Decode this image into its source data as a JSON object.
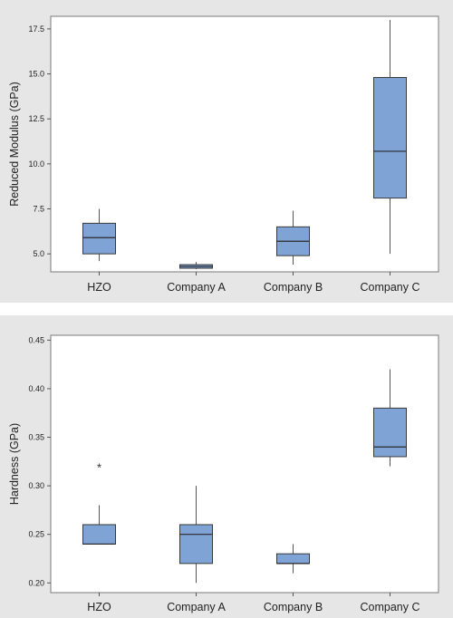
{
  "chart_data": [
    {
      "type": "box",
      "ylabel": "Reduced Modulus (GPa)",
      "categories": [
        "HZO",
        "Company A",
        "Company B",
        "Company C"
      ],
      "ylim": [
        4.0,
        18.2
      ],
      "yticks": [
        "5.0",
        "7.5",
        "10.0",
        "12.5",
        "15.0",
        "17.5"
      ],
      "ytick_values": [
        5.0,
        7.5,
        10.0,
        12.5,
        15.0,
        17.5
      ],
      "grid": false,
      "box_color": "#7ea3d4",
      "boxes": [
        {
          "category": "HZO",
          "whisker_low": 4.6,
          "q1": 5.0,
          "median": 5.9,
          "q3": 6.7,
          "whisker_high": 7.5,
          "outliers": []
        },
        {
          "category": "Company A",
          "whisker_low": 4.15,
          "q1": 4.2,
          "median": 4.3,
          "q3": 4.4,
          "whisker_high": 4.55,
          "outliers": []
        },
        {
          "category": "Company B",
          "whisker_low": 4.4,
          "q1": 4.9,
          "median": 5.7,
          "q3": 6.5,
          "whisker_high": 7.4,
          "outliers": []
        },
        {
          "category": "Company C",
          "whisker_low": 5.0,
          "q1": 8.1,
          "median": 10.7,
          "q3": 14.8,
          "whisker_high": 18.0,
          "outliers": []
        }
      ]
    },
    {
      "type": "box",
      "ylabel": "Hardness (GPa)",
      "categories": [
        "HZO",
        "Company A",
        "Company B",
        "Company C"
      ],
      "ylim": [
        0.19,
        0.455
      ],
      "yticks": [
        "0.20",
        "0.25",
        "0.30",
        "0.35",
        "0.40",
        "0.45"
      ],
      "ytick_values": [
        0.2,
        0.25,
        0.3,
        0.35,
        0.4,
        0.45
      ],
      "grid": false,
      "box_color": "#7ea3d4",
      "boxes": [
        {
          "category": "HZO",
          "whisker_low": 0.24,
          "q1": 0.24,
          "median": 0.24,
          "q3": 0.26,
          "whisker_high": 0.28,
          "outliers": [
            0.32
          ]
        },
        {
          "category": "Company A",
          "whisker_low": 0.2,
          "q1": 0.22,
          "median": 0.25,
          "q3": 0.26,
          "whisker_high": 0.3,
          "outliers": []
        },
        {
          "category": "Company B",
          "whisker_low": 0.21,
          "q1": 0.22,
          "median": 0.22,
          "q3": 0.23,
          "whisker_high": 0.24,
          "outliers": []
        },
        {
          "category": "Company C",
          "whisker_low": 0.32,
          "q1": 0.33,
          "median": 0.34,
          "q3": 0.38,
          "whisker_high": 0.42,
          "outliers": []
        }
      ]
    }
  ]
}
